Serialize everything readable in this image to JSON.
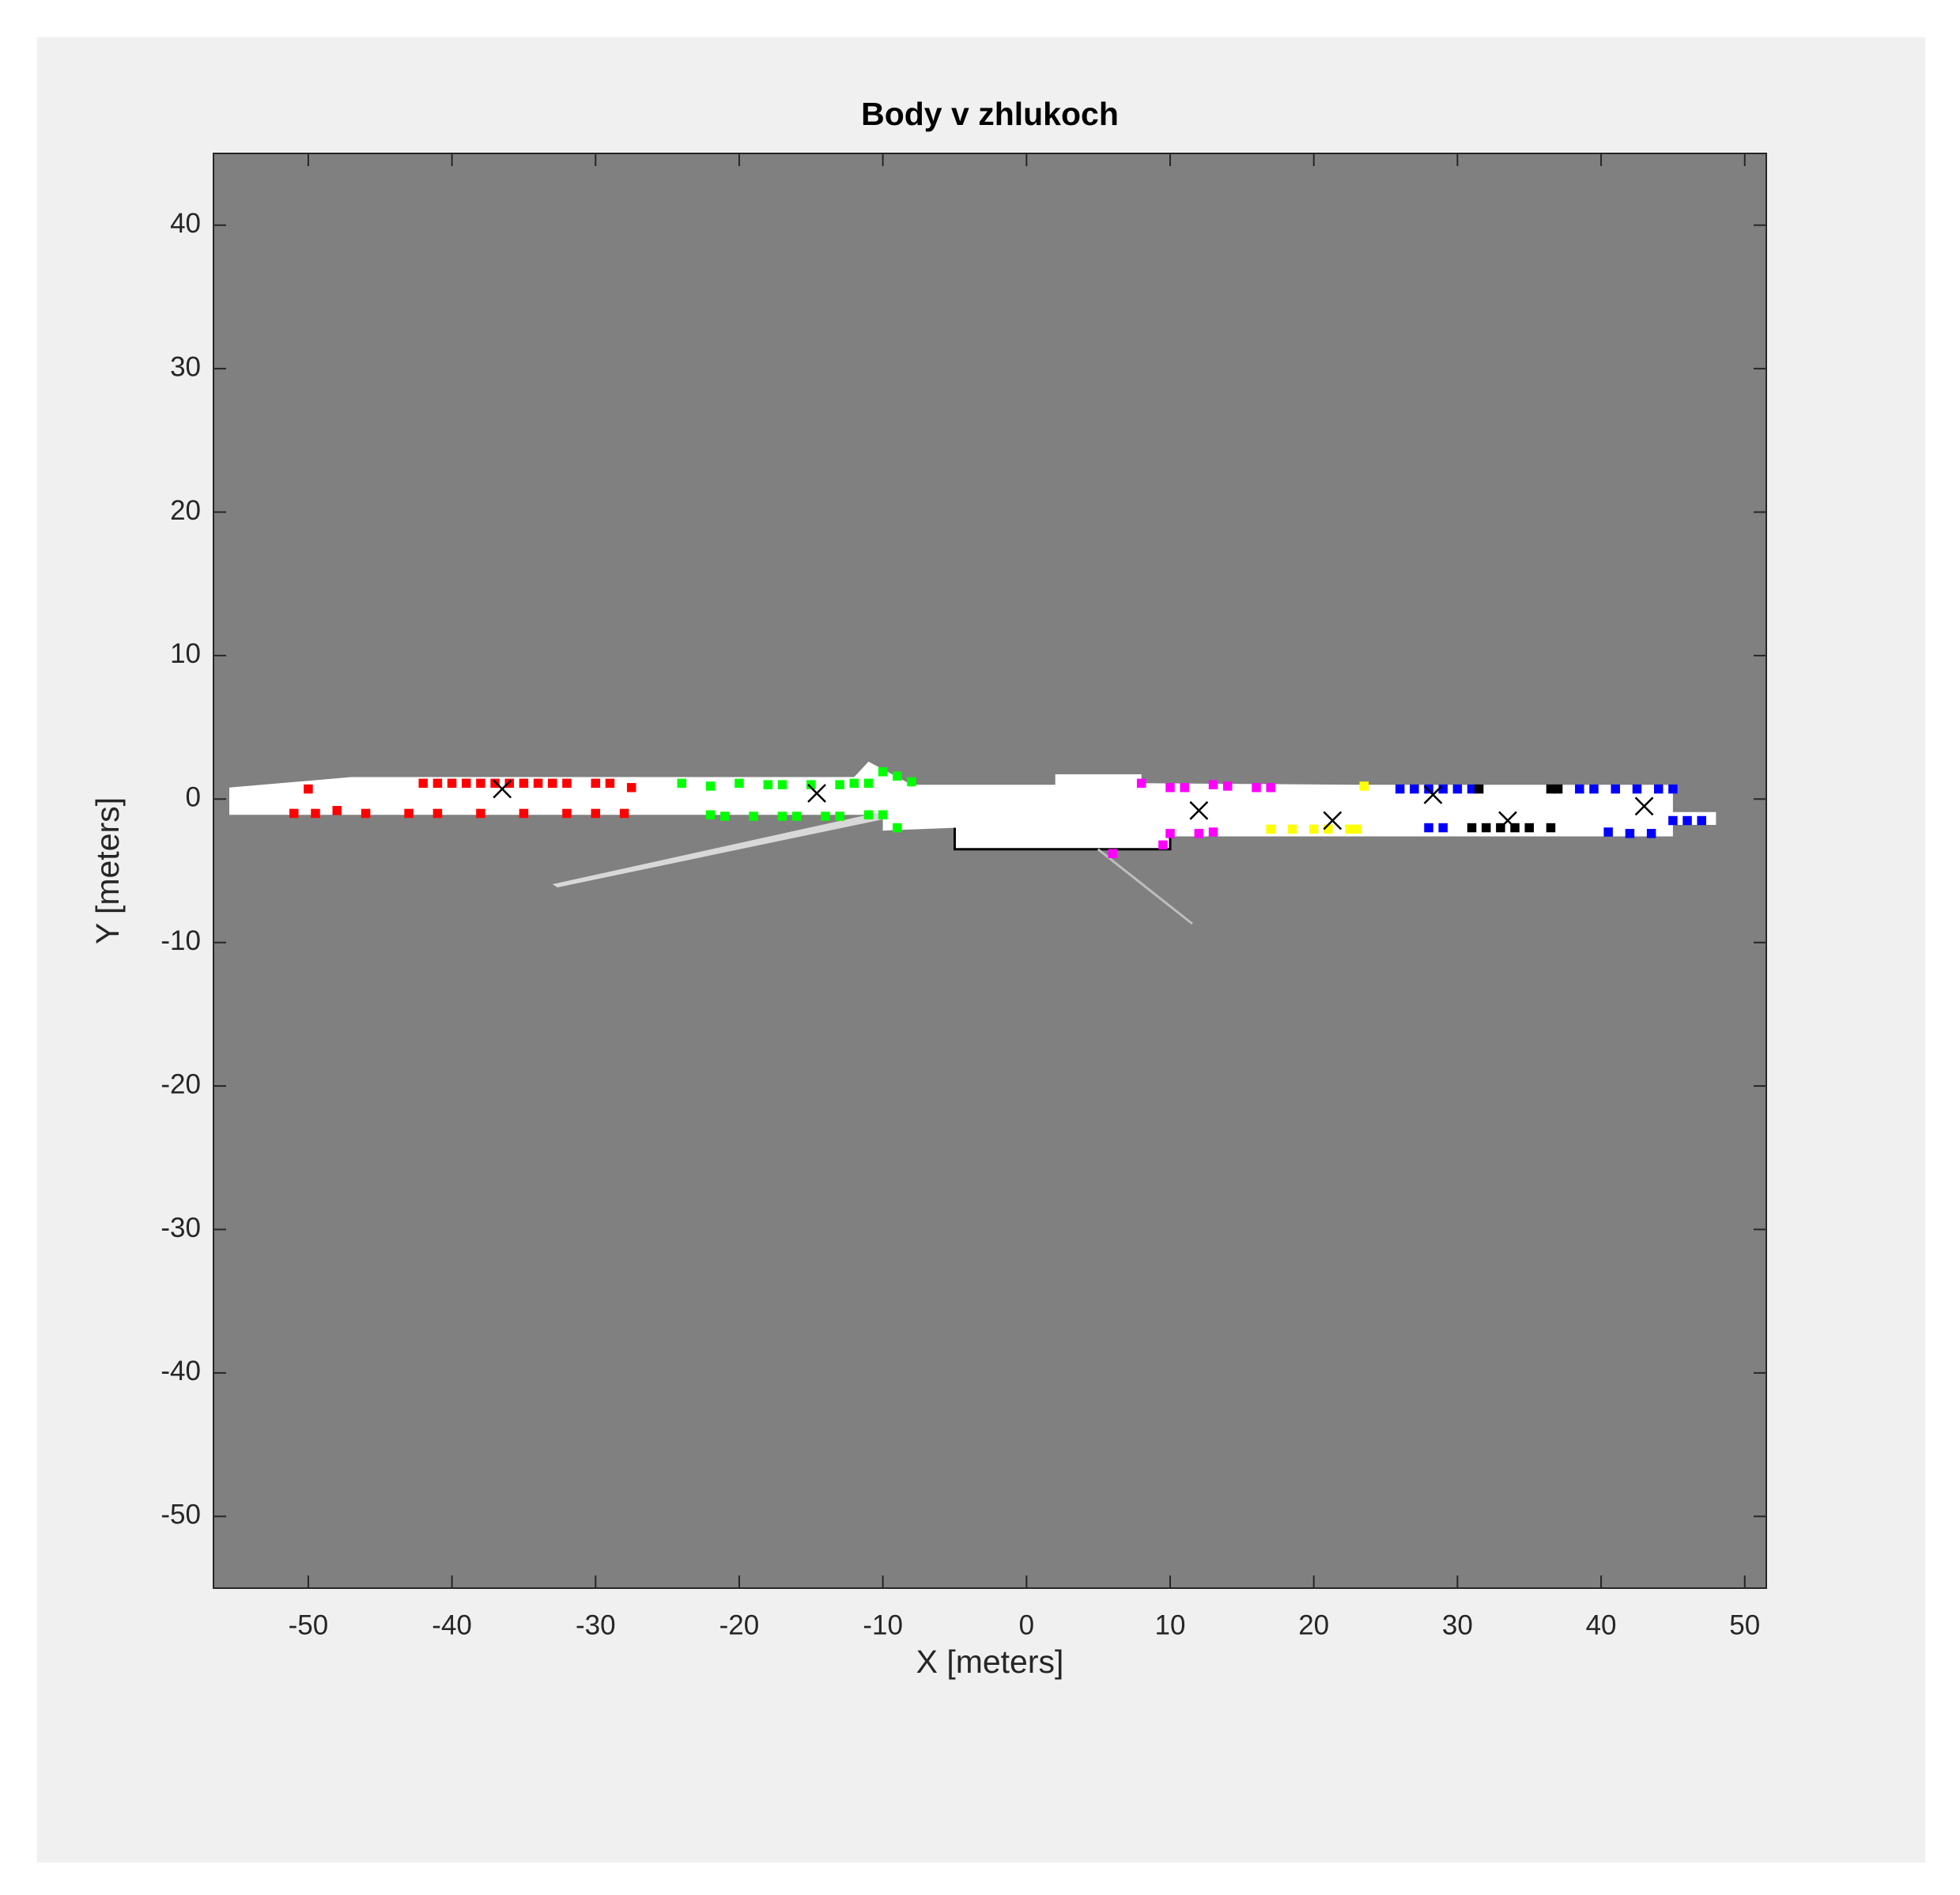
{
  "chart_data": {
    "type": "scatter",
    "title": "Body v zhlukoch",
    "x_label": "X [meters]",
    "y_label": "Y [meters]",
    "xlim": [
      -56.6,
      51.5
    ],
    "ylim": [
      -55,
      45
    ],
    "xticks": [
      -50,
      -40,
      -30,
      -20,
      -10,
      0,
      10,
      20,
      30,
      40,
      50
    ],
    "yticks": [
      -50,
      -40,
      -30,
      -20,
      -10,
      0,
      10,
      20,
      30,
      40
    ],
    "series": [
      {
        "color": "#ff0000",
        "marker": "square",
        "x": [
          -42,
          -41,
          -40,
          -39,
          -38,
          -37,
          -36,
          -35,
          -34,
          -33,
          -32,
          -30,
          -29,
          -27.5,
          -51,
          -49.5,
          -48,
          -46,
          -43,
          -41,
          -38,
          -35,
          -32,
          -30,
          -28,
          -50
        ],
        "y": [
          1.1,
          1.1,
          1.1,
          1.1,
          1.1,
          1.1,
          1.1,
          1.1,
          1.1,
          1.1,
          1.1,
          1.1,
          1.1,
          0.8,
          -1.0,
          -1.0,
          -0.8,
          -1.0,
          -1.0,
          -1.0,
          -1.0,
          -1.0,
          -1.0,
          -1.0,
          -1.0,
          0.7
        ]
      },
      {
        "color": "#00ff00",
        "marker": "square",
        "x": [
          -24,
          -22,
          -20,
          -18,
          -17,
          -15,
          -13,
          -12,
          -11,
          -10,
          -9,
          -8,
          -22,
          -21,
          -19,
          -17,
          -16,
          -14,
          -13,
          -11,
          -10,
          -9
        ],
        "y": [
          1.1,
          0.9,
          1.1,
          1.0,
          1.0,
          1.0,
          1.0,
          1.1,
          1.1,
          1.9,
          1.6,
          1.2,
          -1.1,
          -1.2,
          -1.2,
          -1.2,
          -1.2,
          -1.2,
          -1.2,
          -1.1,
          -1.1,
          -2.0
        ]
      },
      {
        "color": "#ff00ff",
        "marker": "square",
        "x": [
          8,
          10,
          11,
          13,
          14,
          16,
          17,
          10,
          12,
          13,
          9.5,
          6
        ],
        "y": [
          1.1,
          0.8,
          0.8,
          1.0,
          0.9,
          0.8,
          0.8,
          -2.4,
          -2.4,
          -2.3,
          -3.2,
          -3.8
        ]
      },
      {
        "color": "#ffff00",
        "marker": "square",
        "x": [
          17,
          18.5,
          20,
          21,
          22.5,
          23,
          23.5
        ],
        "y": [
          -2.1,
          -2.1,
          -2.1,
          -2.1,
          -2.1,
          -2.1,
          0.9
        ]
      },
      {
        "color": "#0000ff",
        "marker": "square",
        "x": [
          26,
          27,
          28,
          29,
          30,
          31,
          28,
          29
        ],
        "y": [
          0.7,
          0.7,
          0.7,
          0.7,
          0.7,
          0.7,
          -2.0,
          -2.0
        ]
      },
      {
        "color": "#000000",
        "marker": "square",
        "x": [
          31.5,
          36.5,
          37,
          31,
          32,
          33,
          34,
          35,
          36.5
        ],
        "y": [
          0.7,
          0.7,
          0.7,
          -2.0,
          -2.0,
          -2.0,
          -2.0,
          -2.0,
          -2.0
        ]
      },
      {
        "color": "#0000ff",
        "marker": "square",
        "x": [
          38.5,
          39.5,
          41,
          42.5,
          44,
          45,
          40.5,
          42,
          43.5,
          45,
          46,
          47
        ],
        "y": [
          0.7,
          0.7,
          0.7,
          0.7,
          0.7,
          0.7,
          -2.3,
          -2.4,
          -2.4,
          -1.5,
          -1.5,
          -1.5
        ]
      },
      {
        "color": "#000000",
        "marker": "x",
        "x": [
          -36.5,
          -14.6,
          12,
          21.3,
          28.3,
          33.5,
          43
        ],
        "y": [
          0.7,
          0.4,
          -0.8,
          -1.5,
          0.3,
          -1.5,
          -0.5
        ]
      }
    ]
  }
}
